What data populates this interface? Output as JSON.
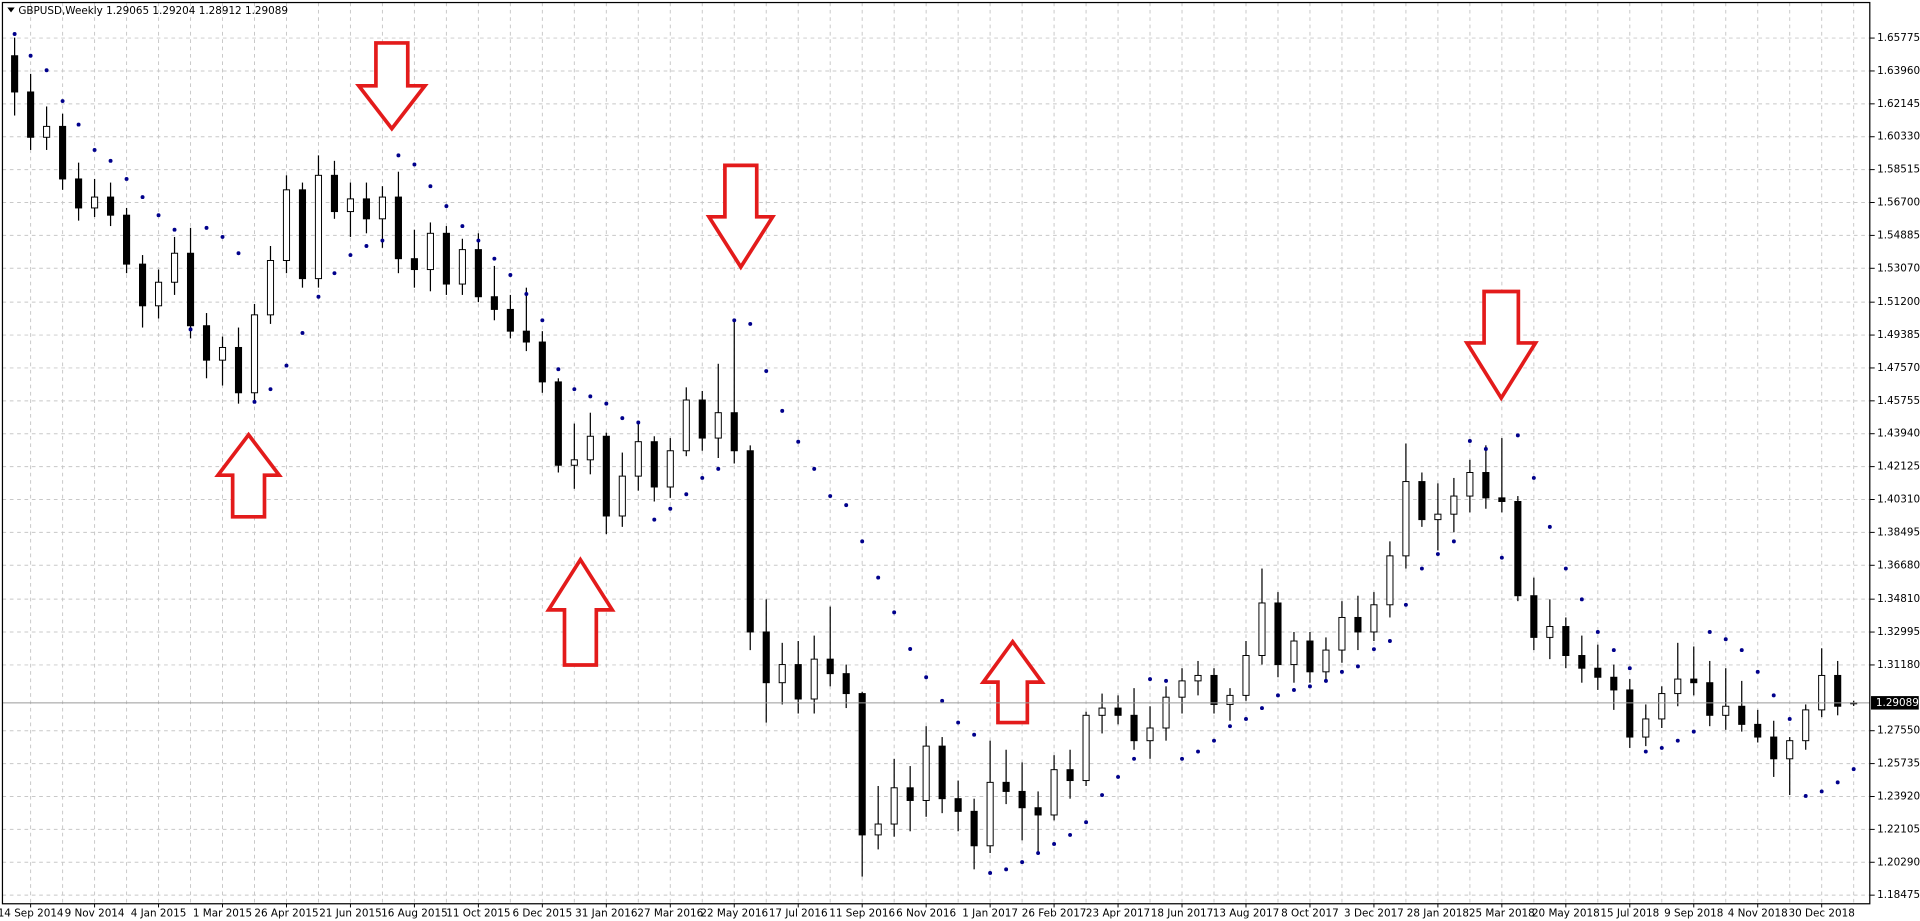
{
  "chart_data": {
    "type": "candlestick",
    "title": "GBPUSD,Weekly",
    "categories": [
      null,
      "14 Sep 2014",
      null,
      null,
      null,
      "9 Nov 2014",
      null,
      null,
      null,
      "4 Jan 2015",
      null,
      null,
      null,
      "1 Mar 2015",
      null,
      null,
      null,
      "26 Apr 2015",
      null,
      null,
      null,
      "21 Jun 2015",
      null,
      null,
      null,
      "16 Aug 2015",
      null,
      null,
      null,
      "11 Oct 2015",
      null,
      null,
      null,
      "6 Dec 2015",
      null,
      null,
      null,
      "31 Jan 2016",
      null,
      null,
      null,
      "27 Mar 2016",
      null,
      null,
      null,
      "22 May 2016",
      null,
      null,
      null,
      "17 Jul 2016",
      null,
      null,
      null,
      "11 Sep 2016",
      null,
      null,
      null,
      "6 Nov 2016",
      null,
      null,
      null,
      "1 Jan 2017",
      null,
      null,
      null,
      "26 Feb 2017",
      null,
      null,
      null,
      "23 Apr 2017",
      null,
      null,
      null,
      "18 Jun 2017",
      null,
      null,
      null,
      "13 Aug 2017",
      null,
      null,
      null,
      "8 Oct 2017",
      null,
      null,
      null,
      "3 Dec 2017",
      null,
      null,
      null,
      "28 Jan 2018",
      null,
      null,
      null,
      "25 Mar 2018",
      null,
      null,
      null,
      "20 May 2018",
      null,
      null,
      null,
      "15 Jul 2018",
      null,
      null,
      null,
      "9 Sep 2018",
      null,
      null,
      null,
      "4 Nov 2018",
      null,
      null,
      null,
      "30 Dec 2018",
      null,
      null
    ],
    "open": [
      1.648,
      1.628,
      1.603,
      1.609,
      1.58,
      1.564,
      1.57,
      1.56,
      1.533,
      1.51,
      1.523,
      1.539,
      1.499,
      1.48,
      1.487,
      1.462,
      1.505,
      1.535,
      1.574,
      1.525,
      1.582,
      1.562,
      1.569,
      1.558,
      1.57,
      1.536,
      1.53,
      1.55,
      1.522,
      1.541,
      1.515,
      1.508,
      1.496,
      1.49,
      1.468,
      1.422,
      1.425,
      1.438,
      1.394,
      1.416,
      1.435,
      1.41,
      1.43,
      1.458,
      1.437,
      1.451,
      1.43,
      1.33,
      1.302,
      1.312,
      1.293,
      1.315,
      1.307,
      1.296,
      1.218,
      1.224,
      1.244,
      1.237,
      1.267,
      1.238,
      1.231,
      1.212,
      1.247,
      1.242,
      1.233,
      1.229,
      1.254,
      1.248,
      1.284,
      1.288,
      1.284,
      1.27,
      1.277,
      1.294,
      1.303,
      1.306,
      1.29,
      1.295,
      1.317,
      1.346,
      1.312,
      1.325,
      1.308,
      1.32,
      1.338,
      1.33,
      1.345,
      1.372,
      1.413,
      1.392,
      1.395,
      1.405,
      1.418,
      1.404,
      1.402,
      1.35,
      1.327,
      1.333,
      1.317,
      1.31,
      1.305,
      1.298,
      1.272,
      1.282,
      1.296,
      1.304,
      1.302,
      1.284,
      1.289,
      1.279,
      1.272,
      1.26,
      1.27,
      1.287,
      1.306,
      1.29065
    ],
    "high": [
      1.658,
      1.638,
      1.62,
      1.616,
      1.589,
      1.58,
      1.578,
      1.564,
      1.538,
      1.53,
      1.548,
      1.553,
      1.506,
      1.493,
      1.498,
      1.511,
      1.543,
      1.582,
      1.578,
      1.593,
      1.59,
      1.578,
      1.578,
      1.576,
      1.584,
      1.552,
      1.556,
      1.554,
      1.547,
      1.55,
      1.532,
      1.516,
      1.52,
      1.496,
      1.47,
      1.445,
      1.451,
      1.44,
      1.429,
      1.445,
      1.438,
      1.437,
      1.465,
      1.463,
      1.478,
      1.502,
      1.433,
      1.348,
      1.324,
      1.325,
      1.328,
      1.344,
      1.312,
      1.297,
      1.245,
      1.26,
      1.256,
      1.278,
      1.272,
      1.248,
      1.238,
      1.27,
      1.265,
      1.258,
      1.242,
      1.262,
      1.265,
      1.286,
      1.296,
      1.295,
      1.299,
      1.289,
      1.3,
      1.31,
      1.314,
      1.31,
      1.299,
      1.325,
      1.365,
      1.352,
      1.33,
      1.33,
      1.327,
      1.347,
      1.35,
      1.352,
      1.38,
      1.434,
      1.418,
      1.412,
      1.415,
      1.425,
      1.433,
      1.437,
      1.405,
      1.36,
      1.348,
      1.338,
      1.328,
      1.323,
      1.312,
      1.304,
      1.29,
      1.3,
      1.324,
      1.322,
      1.314,
      1.31,
      1.303,
      1.287,
      1.281,
      1.272,
      1.29,
      1.321,
      1.314,
      1.29204
    ],
    "low": [
      1.615,
      1.596,
      1.596,
      1.574,
      1.557,
      1.559,
      1.554,
      1.528,
      1.498,
      1.503,
      1.516,
      1.492,
      1.47,
      1.466,
      1.456,
      1.458,
      1.5,
      1.528,
      1.52,
      1.52,
      1.558,
      1.548,
      1.55,
      1.542,
      1.528,
      1.52,
      1.518,
      1.516,
      1.516,
      1.512,
      1.502,
      1.492,
      1.485,
      1.462,
      1.418,
      1.409,
      1.417,
      1.384,
      1.388,
      1.408,
      1.402,
      1.404,
      1.427,
      1.43,
      1.426,
      1.423,
      1.32,
      1.28,
      1.29,
      1.285,
      1.285,
      1.3,
      1.288,
      1.195,
      1.21,
      1.217,
      1.22,
      1.228,
      1.23,
      1.22,
      1.199,
      1.208,
      1.235,
      1.215,
      1.208,
      1.226,
      1.238,
      1.245,
      1.274,
      1.279,
      1.265,
      1.26,
      1.27,
      1.285,
      1.295,
      1.285,
      1.281,
      1.292,
      1.312,
      1.305,
      1.302,
      1.302,
      1.304,
      1.313,
      1.32,
      1.325,
      1.338,
      1.365,
      1.388,
      1.375,
      1.385,
      1.396,
      1.398,
      1.396,
      1.347,
      1.32,
      1.315,
      1.31,
      1.302,
      1.298,
      1.287,
      1.266,
      1.267,
      1.277,
      1.289,
      1.295,
      1.278,
      1.276,
      1.275,
      1.269,
      1.25,
      1.24,
      1.265,
      1.283,
      1.284,
      1.28912
    ],
    "close": [
      1.628,
      1.603,
      1.609,
      1.58,
      1.564,
      1.57,
      1.56,
      1.533,
      1.51,
      1.523,
      1.539,
      1.499,
      1.48,
      1.487,
      1.462,
      1.505,
      1.535,
      1.574,
      1.525,
      1.582,
      1.562,
      1.569,
      1.558,
      1.57,
      1.536,
      1.53,
      1.55,
      1.522,
      1.541,
      1.515,
      1.508,
      1.496,
      1.49,
      1.468,
      1.422,
      1.425,
      1.438,
      1.394,
      1.416,
      1.435,
      1.41,
      1.43,
      1.458,
      1.437,
      1.451,
      1.43,
      1.33,
      1.302,
      1.312,
      1.293,
      1.315,
      1.307,
      1.296,
      1.218,
      1.224,
      1.244,
      1.237,
      1.267,
      1.238,
      1.231,
      1.212,
      1.247,
      1.242,
      1.233,
      1.229,
      1.254,
      1.248,
      1.284,
      1.288,
      1.284,
      1.27,
      1.277,
      1.294,
      1.303,
      1.306,
      1.29,
      1.295,
      1.317,
      1.346,
      1.312,
      1.325,
      1.308,
      1.32,
      1.338,
      1.33,
      1.345,
      1.372,
      1.413,
      1.392,
      1.395,
      1.405,
      1.418,
      1.404,
      1.402,
      1.35,
      1.327,
      1.333,
      1.317,
      1.31,
      1.305,
      1.298,
      1.272,
      1.282,
      1.296,
      1.304,
      1.302,
      1.284,
      1.289,
      1.279,
      1.272,
      1.26,
      1.27,
      1.287,
      1.306,
      1.289,
      1.29089
    ],
    "sar": [
      1.66,
      1.648,
      1.64,
      1.623,
      1.61,
      1.596,
      1.59,
      1.58,
      1.57,
      1.56,
      1.552,
      1.497,
      1.553,
      1.548,
      1.539,
      1.457,
      1.464,
      1.477,
      1.495,
      1.515,
      1.528,
      1.538,
      1.543,
      1.546,
      1.593,
      1.588,
      1.576,
      1.565,
      1.554,
      1.546,
      1.536,
      1.527,
      1.5165,
      1.502,
      1.475,
      1.464,
      1.46,
      1.456,
      1.448,
      1.4456,
      1.392,
      1.398,
      1.406,
      1.415,
      1.42,
      1.502,
      1.5,
      1.474,
      1.452,
      1.435,
      1.42,
      1.405,
      1.4,
      1.38,
      1.36,
      1.3408,
      1.3206,
      1.305,
      1.292,
      1.28,
      1.2733,
      1.197,
      1.199,
      1.203,
      1.208,
      1.213,
      1.218,
      1.225,
      1.24,
      1.25,
      1.26,
      1.304,
      1.303,
      1.26,
      1.264,
      1.27,
      1.278,
      1.282,
      1.288,
      1.295,
      1.298,
      1.3,
      1.303,
      1.308,
      1.311,
      1.3205,
      1.325,
      1.345,
      1.365,
      1.373,
      1.38,
      1.4354,
      1.431,
      1.371,
      1.4385,
      1.415,
      1.388,
      1.365,
      1.348,
      1.33,
      1.32,
      1.31,
      1.264,
      1.266,
      1.27,
      1.275,
      1.33,
      1.326,
      1.32,
      1.308,
      1.295,
      1.282,
      1.2395,
      1.242,
      1.247,
      1.2543
    ],
    "up_color": "#ffffff",
    "down_color": "#000000",
    "wick_color": "#000000",
    "sar_color": "#00008b",
    "ylim": [
      1.18,
      1.6733
    ],
    "yticks": [
      1.65775,
      {
        "value": 1.6396,
        "label": "1.63960"
      },
      1.62145,
      {
        "value": 1.6033,
        "label": "1.60330"
      },
      1.58515,
      {
        "value": 1.567,
        "label": "1.56700"
      },
      1.54885,
      {
        "value": 1.5307,
        "label": "1.53070"
      },
      {
        "value": 1.512,
        "label": "1.51200"
      },
      1.49385,
      {
        "value": 1.4757,
        "label": "1.47570"
      },
      1.45755,
      {
        "value": 1.4394,
        "label": "1.43940"
      },
      1.42125,
      {
        "value": 1.4031,
        "label": "1.40310"
      },
      1.38495,
      {
        "value": 1.3668,
        "label": "1.36680"
      },
      {
        "value": 1.3481,
        "label": "1.34810"
      },
      1.32995,
      {
        "value": 1.3118,
        "label": "1.31180"
      },
      {
        "value": 1.2755,
        "label": "1.27550"
      },
      1.25735,
      {
        "value": 1.2392,
        "label": "1.23920"
      },
      1.22105,
      {
        "value": 1.2029,
        "label": "1.20290"
      },
      1.18475
    ],
    "grid": true
  }
}
